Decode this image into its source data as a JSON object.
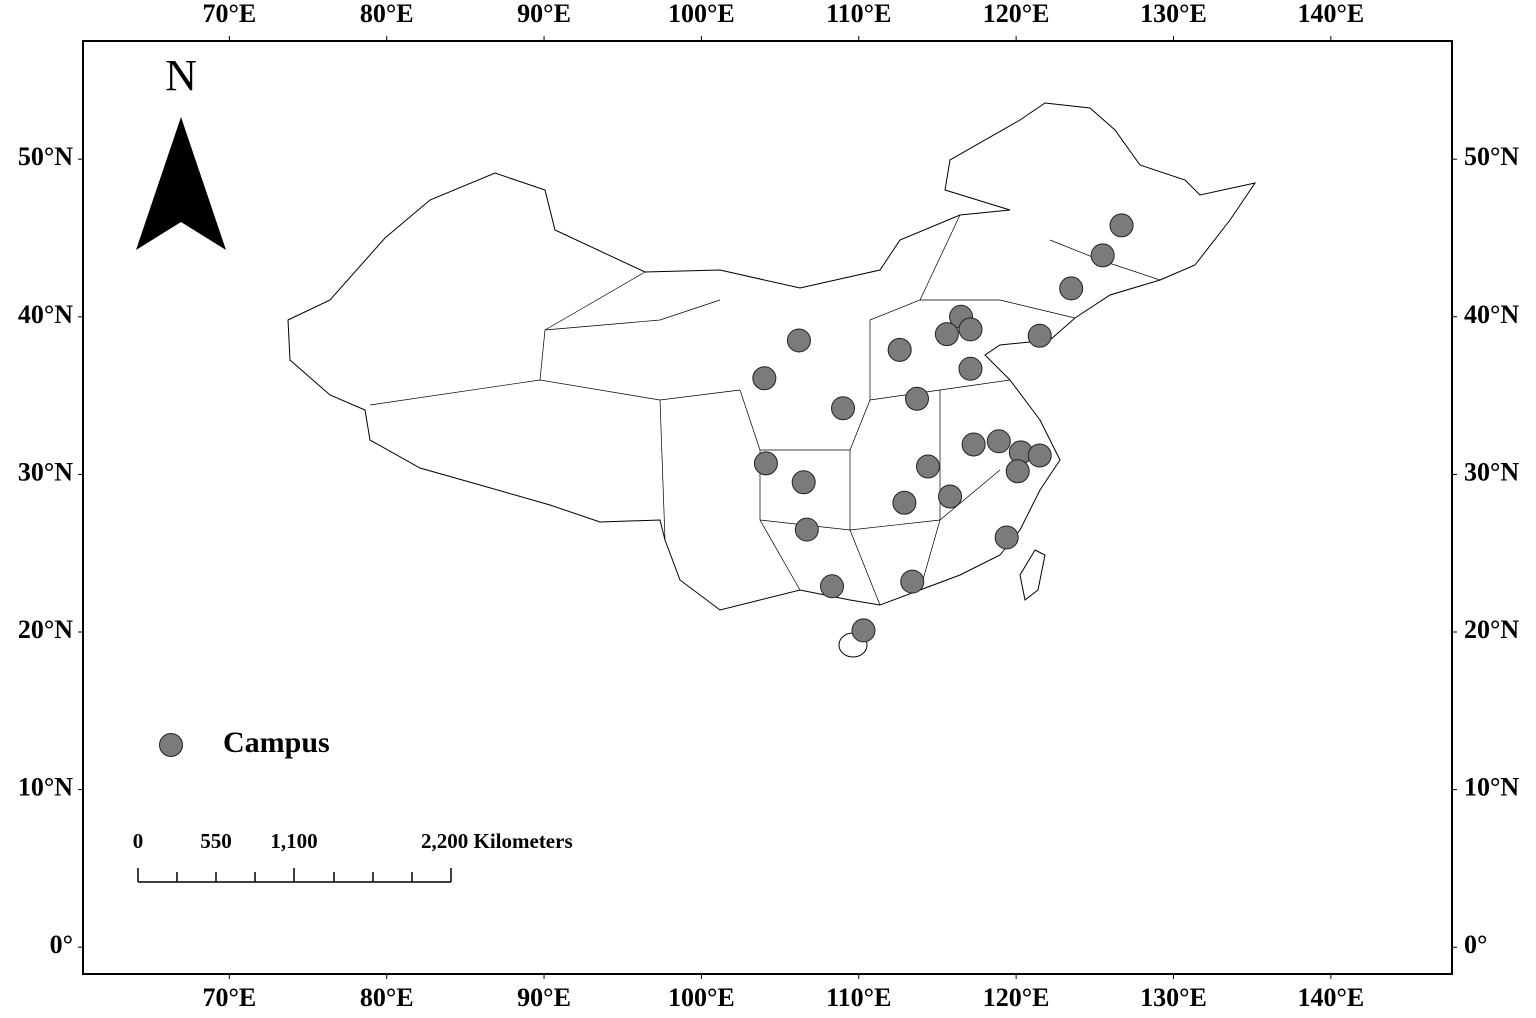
{
  "chart_data": {
    "type": "scatter",
    "x": [
      126.7,
      125.5,
      123.5,
      121.5,
      116.5,
      117.1,
      115.6,
      112.6,
      117.1,
      106.2,
      104.0,
      109.0,
      113.7,
      117.3,
      118.9,
      120.3,
      121.5,
      120.1,
      114.4,
      104.1,
      106.5,
      115.8,
      112.9,
      106.7,
      119.4,
      113.4,
      108.3,
      110.3
    ],
    "series": [
      {
        "name": "Campus",
        "color": "#7b7b7b",
        "values": [
          45.8,
          43.9,
          41.8,
          38.8,
          40.0,
          39.2,
          38.9,
          37.9,
          36.7,
          38.5,
          36.1,
          34.2,
          34.8,
          31.9,
          32.1,
          31.4,
          31.2,
          30.2,
          30.5,
          30.7,
          29.5,
          28.6,
          28.2,
          26.5,
          26.0,
          23.2,
          22.9,
          20.1
        ]
      }
    ],
    "xlim": [
      60.7,
      147.7
    ],
    "ylim": [
      -1.7,
      57.5
    ],
    "xticks": [
      {
        "value": 70,
        "label": "70°E"
      },
      {
        "value": 80,
        "label": "80°E"
      },
      {
        "value": 90,
        "label": "90°E"
      },
      {
        "value": 100,
        "label": "100°E"
      },
      {
        "value": 110,
        "label": "110°E"
      },
      {
        "value": 120,
        "label": "120°E"
      },
      {
        "value": 130,
        "label": "130°E"
      },
      {
        "value": 140,
        "label": "140°E"
      }
    ],
    "yticks": [
      {
        "value": 0,
        "label": "0°"
      },
      {
        "value": 10,
        "label": "10°N"
      },
      {
        "value": 20,
        "label": "20°N"
      },
      {
        "value": 30,
        "label": "30°N"
      },
      {
        "value": 40,
        "label": "40°N"
      },
      {
        "value": 50,
        "label": "50°N"
      }
    ],
    "north_label": "N",
    "scale_bar": {
      "labels": [
        "0",
        "550",
        "1,100",
        "2,200 Kilometers"
      ]
    }
  }
}
